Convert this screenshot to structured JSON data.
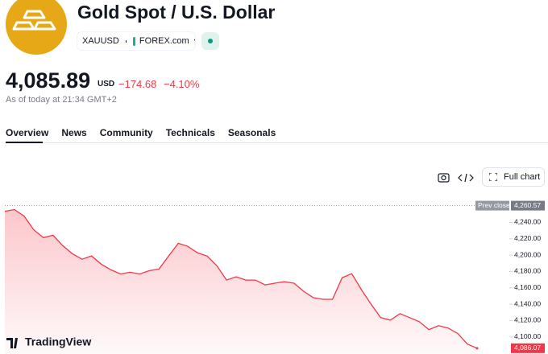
{
  "header": {
    "title": "Gold Spot / U.S. Dollar",
    "symbol": "XAUUSD",
    "exchange": "FOREX.com"
  },
  "quote": {
    "price": "4,085.89",
    "currency": "USD",
    "change": "−174.68",
    "change_percent": "−4.10%",
    "timestamp": "As of today at 21:34 GMT+2"
  },
  "tabs": [
    "Overview",
    "News",
    "Community",
    "Technicals",
    "Seasonals"
  ],
  "toolbar": {
    "full_chart": "Full chart"
  },
  "chart_data": {
    "type": "line",
    "color": "#f23645",
    "watermark": "TradingView",
    "values": [
      4253.7,
      4255.7,
      4247.8,
      4231.0,
      4221.4,
      4224.3,
      4211.6,
      4201.8,
      4195.0,
      4199.0,
      4189.0,
      4182.0,
      4177.0,
      4179.0,
      4177.0,
      4181.0,
      4183.0,
      4199.0,
      4214.5,
      4210.6,
      4202.8,
      4198.8,
      4187.0,
      4169.5,
      4173.5,
      4169.5,
      4169.5,
      4163.6,
      4165.6,
      4167.5,
      4165.6,
      4155.8,
      4148.0,
      4146.0,
      4146.0,
      4172.4,
      4177.3,
      4157.7,
      4140.0,
      4123.5,
      4120.5,
      4128.4,
      4123.5,
      4118.6,
      4108.8,
      4113.7,
      4110.8,
      4104.0,
      4091.1,
      4086.07
    ],
    "ylim": [
      4079,
      4271
    ],
    "yticks": [
      {
        "value": 4240,
        "label": "4,240.00"
      },
      {
        "value": 4220,
        "label": "4,220.00"
      },
      {
        "value": 4200,
        "label": "4,200.00"
      },
      {
        "value": 4180,
        "label": "4,180.00"
      },
      {
        "value": 4160,
        "label": "4,160.00"
      },
      {
        "value": 4140,
        "label": "4,140.00"
      },
      {
        "value": 4120,
        "label": "4,120.00"
      },
      {
        "value": 4100,
        "label": "4,100.00"
      }
    ],
    "prev_close": {
      "name": "Prev close",
      "value": 4260.57,
      "label": "4,260.57"
    },
    "last_price": {
      "value": 4086.07,
      "label": "4,086.07"
    }
  }
}
